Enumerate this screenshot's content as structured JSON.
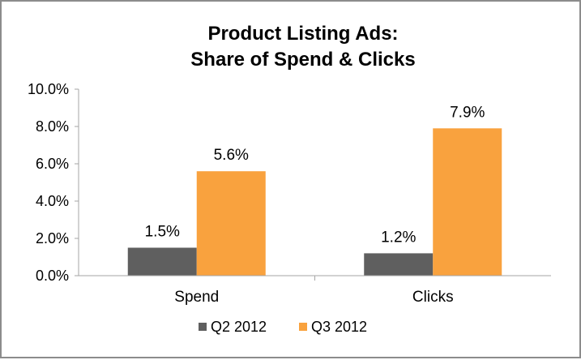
{
  "chart_data": {
    "type": "bar",
    "title": [
      "Product Listing Ads:",
      "Share of Spend & Clicks"
    ],
    "categories": [
      "Spend",
      "Clicks"
    ],
    "series": [
      {
        "name": "Q2 2012",
        "values": [
          1.5,
          1.2
        ],
        "labels": [
          "1.5%",
          "1.2%"
        ],
        "color": "#5f5f5f"
      },
      {
        "name": "Q3 2012",
        "values": [
          5.6,
          7.9
        ],
        "labels": [
          "5.6%",
          "7.9%"
        ],
        "color": "#f9a23e"
      }
    ],
    "ylim": [
      0,
      10
    ],
    "yticks": [
      {
        "value": 0,
        "label": "0.0%"
      },
      {
        "value": 2,
        "label": "2.0%"
      },
      {
        "value": 4,
        "label": "4.0%"
      },
      {
        "value": 6,
        "label": "6.0%"
      },
      {
        "value": 8,
        "label": "8.0%"
      },
      {
        "value": 10,
        "label": "10.0%"
      }
    ],
    "xlabel": "",
    "ylabel": "",
    "grid": false,
    "legend_position": "bottom",
    "colors": {
      "axis": "#a6a6a6",
      "border": "#8c8c8c"
    }
  }
}
